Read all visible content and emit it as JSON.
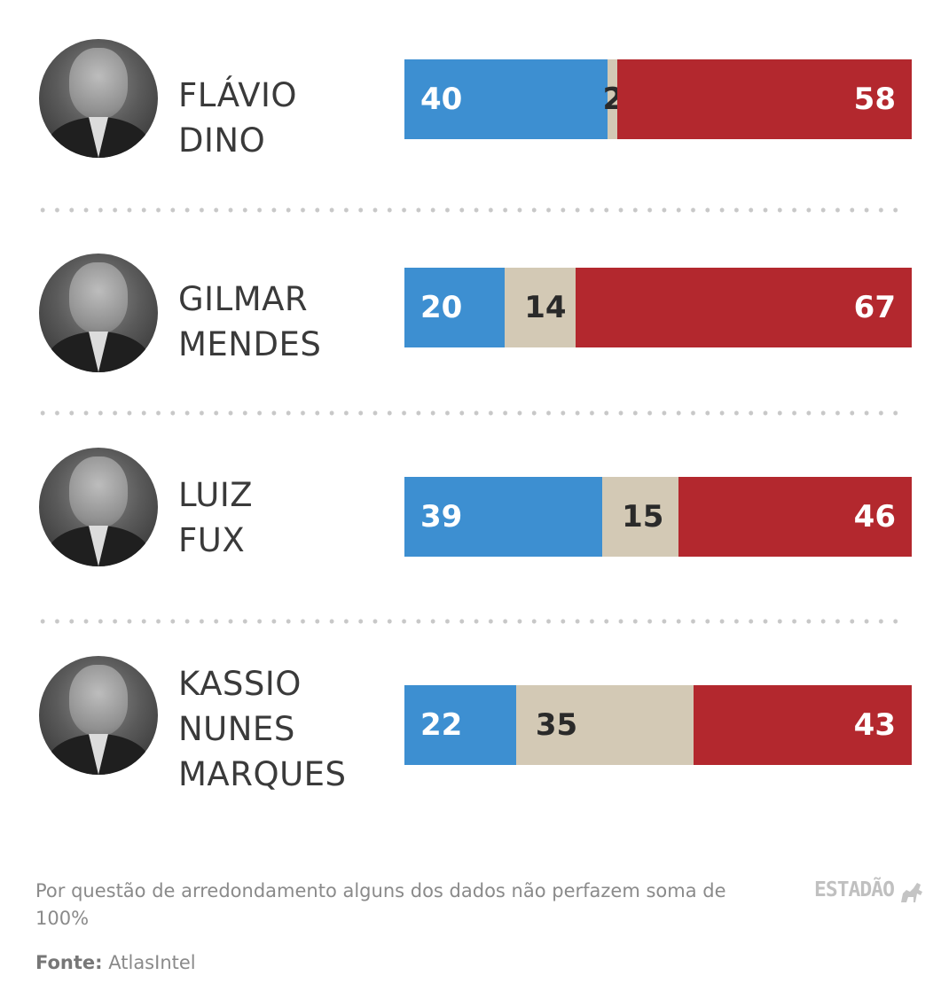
{
  "chart_data": {
    "type": "bar",
    "orientation": "horizontal",
    "stacked": true,
    "categories": [
      "FLÁVIO DINO",
      "GILMAR MENDES",
      "LUIZ FUX",
      "KASSIO NUNES MARQUES"
    ],
    "series": [
      {
        "values": [
          40,
          20,
          39,
          22
        ],
        "color": "#3d8fd1"
      },
      {
        "values": [
          2,
          14,
          15,
          35
        ],
        "color": "#d3c9b5"
      },
      {
        "values": [
          58,
          67,
          46,
          43
        ],
        "color": "#b3282e"
      }
    ],
    "rows": [
      {
        "name_lines": [
          "FLÁVIO",
          "DINO"
        ],
        "values": [
          40,
          2,
          58
        ],
        "labels": [
          "40",
          "2",
          "58"
        ]
      },
      {
        "name_lines": [
          "GILMAR",
          "MENDES"
        ],
        "values": [
          20,
          14,
          67
        ],
        "labels": [
          "20",
          "14",
          "67"
        ]
      },
      {
        "name_lines": [
          "LUIZ",
          "FUX"
        ],
        "values": [
          39,
          15,
          46
        ],
        "labels": [
          "39",
          "15",
          "46"
        ]
      },
      {
        "name_lines": [
          "KASSIO",
          "NUNES",
          "MARQUES"
        ],
        "values": [
          22,
          35,
          43
        ],
        "labels": [
          "22",
          "35",
          "43"
        ]
      }
    ]
  },
  "footer": {
    "note": "Por questão de arredondamento alguns dos dados não perfazem soma de 100%",
    "source_label": "Fonte:",
    "source_value": "AtlasIntel",
    "logo": "ESTADÃO"
  },
  "icons": {
    "portrait": "person-portrait-icon",
    "logo": "estadao-horse-icon"
  }
}
